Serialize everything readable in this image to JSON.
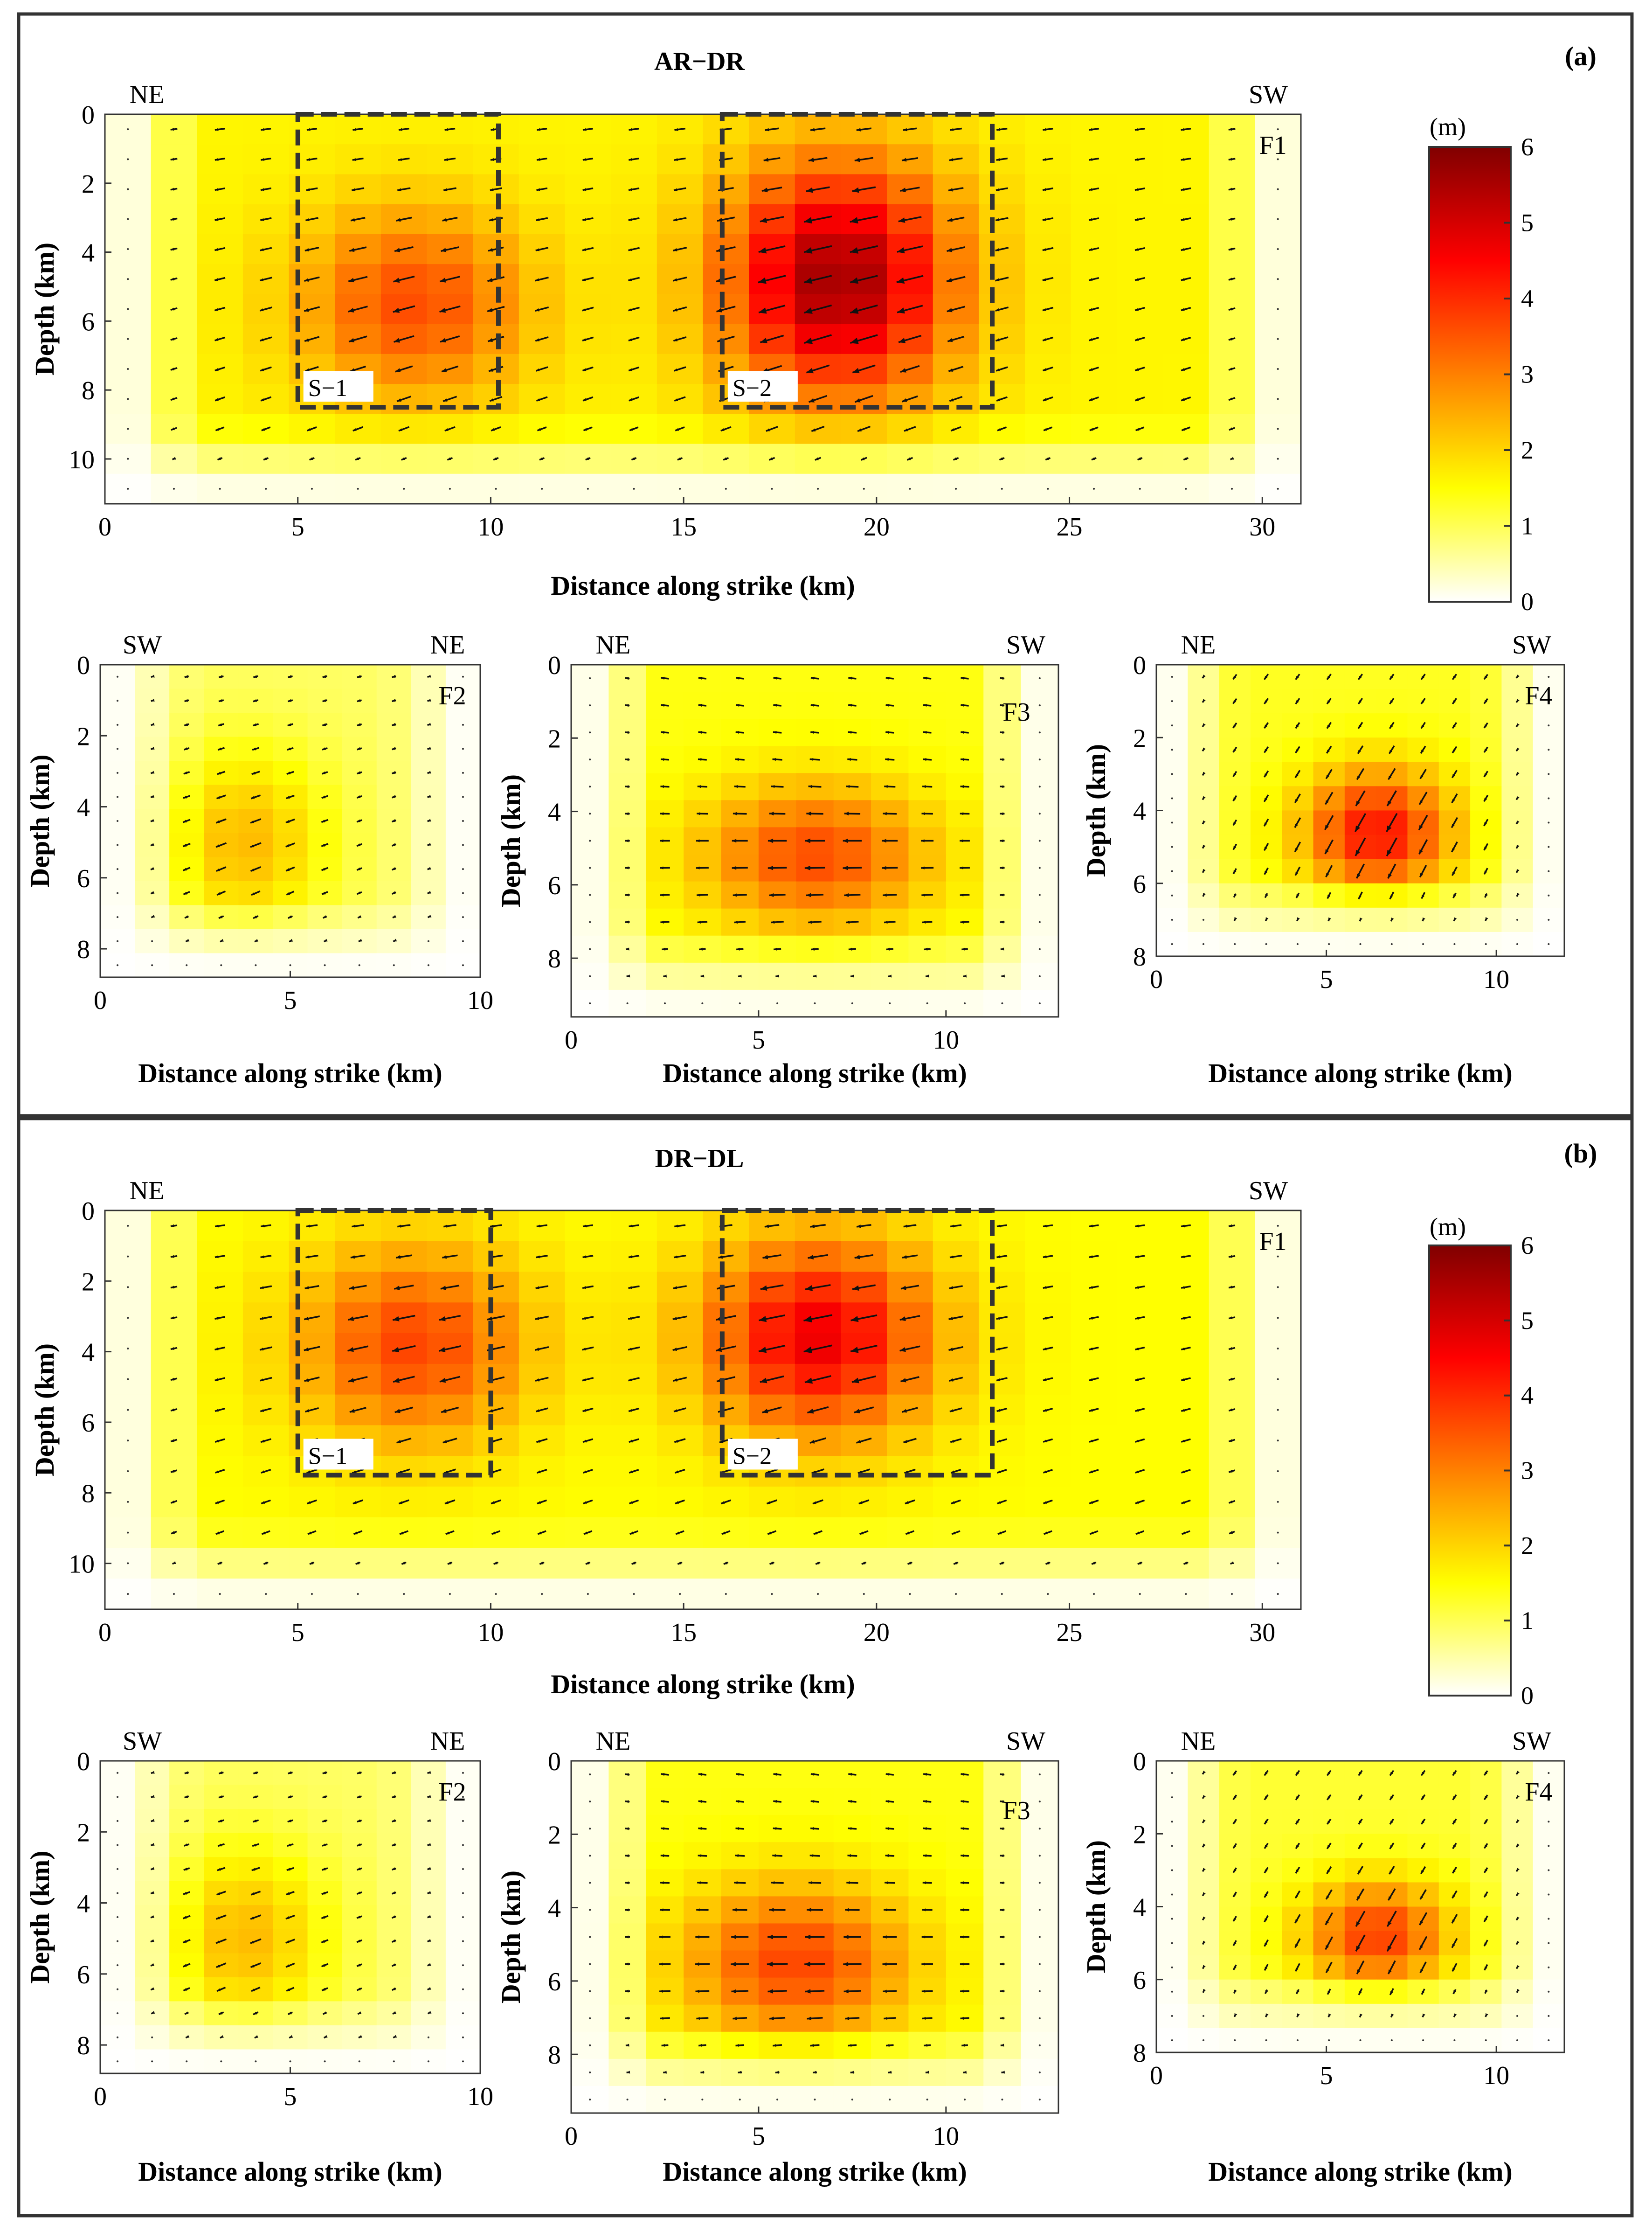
{
  "chart_data": [
    {
      "panel": "(a)",
      "title": "AR−DR",
      "type": "heatmap",
      "colorbar": {
        "unit": "(m)",
        "range": [
          0,
          6
        ],
        "ticks": [
          "0",
          "1",
          "2",
          "3",
          "4",
          "5",
          "6"
        ],
        "colors": [
          "#ffffff",
          "#ffff00",
          "#ff8000",
          "#ff0000",
          "#800000"
        ]
      },
      "faults": [
        {
          "name": "F1",
          "left": "NE",
          "right": "SW",
          "xlabel": "Distance along strike (km)",
          "ylabel": "Depth (km)",
          "xlim": [
            0,
            31
          ],
          "ylim": [
            0,
            11.3
          ],
          "xticks": [
            "0",
            "5",
            "10",
            "15",
            "20",
            "25",
            "30"
          ],
          "yticks": [
            "0",
            "2",
            "4",
            "6",
            "8",
            "10"
          ],
          "slip_patches": [
            {
              "x0": 5,
              "x1": 12,
              "y0": 1,
              "y1": 7.5,
              "peak": 3.6,
              "cx": 8,
              "cy": 5.5
            },
            {
              "x0": 16,
              "x1": 23,
              "y0": 0,
              "y1": 8,
              "peak": 5.6,
              "cx": 19,
              "cy": 4.8
            }
          ],
          "background_slip": 1.6,
          "grid_step": 1.2,
          "mean_rake": 195,
          "boxes": [
            {
              "label": "S−1",
              "x0": 5,
              "x1": 10.2,
              "y0": 0,
              "y1": 8.5
            },
            {
              "label": "S−2",
              "x0": 16,
              "x1": 23,
              "y0": 0,
              "y1": 8.5
            }
          ]
        },
        {
          "name": "F2",
          "left": "SW",
          "right": "NE",
          "xlabel": "Distance along strike (km)",
          "ylabel": "Depth (km)",
          "xlim": [
            0,
            10
          ],
          "ylim": [
            0,
            8.8
          ],
          "xticks": [
            "0",
            "5",
            "10"
          ],
          "yticks": [
            "0",
            "2",
            "4",
            "6",
            "8"
          ],
          "slip_patches": [
            {
              "x0": 1,
              "x1": 6,
              "y0": 2,
              "y1": 8,
              "peak": 2.3,
              "cx": 3.8,
              "cy": 5
            }
          ],
          "background_slip": 0.9,
          "grid_step": 0.9,
          "mean_rake": 200
        },
        {
          "name": "F3",
          "left": "NE",
          "right": "SW",
          "xlabel": "Distance along strike (km)",
          "ylabel": "Depth (km)",
          "xlim": [
            0,
            13
          ],
          "ylim": [
            0,
            9.6
          ],
          "xticks": [
            "0",
            "5",
            "10"
          ],
          "yticks": [
            "0",
            "2",
            "4",
            "6",
            "8"
          ],
          "slip_patches": [
            {
              "x0": 3,
              "x1": 10,
              "y0": 3,
              "y1": 7.5,
              "peak": 3.6,
              "cx": 6.5,
              "cy": 5.2
            }
          ],
          "background_slip": 1.4,
          "grid_step": 1.0,
          "mean_rake": 180
        },
        {
          "name": "F4",
          "left": "NE",
          "right": "SW",
          "xlabel": "Distance along strike (km)",
          "ylabel": "Depth (km)",
          "xlim": [
            0,
            12
          ],
          "ylim": [
            0,
            8
          ],
          "xticks": [
            "0",
            "5",
            "10"
          ],
          "yticks": [
            "0",
            "2",
            "4",
            "6",
            "8"
          ],
          "slip_patches": [
            {
              "x0": 4,
              "x1": 9,
              "y0": 2.5,
              "y1": 6.5,
              "peak": 4.3,
              "cx": 6.5,
              "cy": 4.6
            }
          ],
          "background_slip": 1.3,
          "grid_step": 0.9,
          "mean_rake": 240
        }
      ]
    },
    {
      "panel": "(b)",
      "title": "DR−DL",
      "type": "heatmap",
      "colorbar": {
        "unit": "(m)",
        "range": [
          0,
          6
        ],
        "ticks": [
          "0",
          "1",
          "2",
          "3",
          "4",
          "5",
          "6"
        ],
        "colors": [
          "#ffffff",
          "#ffff00",
          "#ff8000",
          "#ff0000",
          "#800000"
        ]
      },
      "faults": [
        {
          "name": "F1",
          "left": "NE",
          "right": "SW",
          "xlabel": "Distance along strike (km)",
          "ylabel": "Depth (km)",
          "xlim": [
            0,
            31
          ],
          "ylim": [
            0,
            11.3
          ],
          "xticks": [
            "0",
            "5",
            "10",
            "15",
            "20",
            "25",
            "30"
          ],
          "yticks": [
            "0",
            "2",
            "4",
            "6",
            "8",
            "10"
          ],
          "slip_patches": [
            {
              "x0": 5,
              "x1": 12,
              "y0": 1,
              "y1": 7.5,
              "peak": 3.7,
              "cx": 8,
              "cy": 3.8
            },
            {
              "x0": 16,
              "x1": 23,
              "y0": 1,
              "y1": 7.5,
              "peak": 4.7,
              "cx": 18.5,
              "cy": 3.6
            }
          ],
          "background_slip": 1.5,
          "grid_step": 1.2,
          "mean_rake": 195,
          "boxes": [
            {
              "label": "S−1",
              "x0": 5,
              "x1": 10,
              "y0": 0,
              "y1": 7.5
            },
            {
              "label": "S−2",
              "x0": 16,
              "x1": 23,
              "y0": 0,
              "y1": 7.5
            }
          ]
        },
        {
          "name": "F2",
          "left": "SW",
          "right": "NE",
          "xlabel": "Distance along strike (km)",
          "ylabel": "Depth (km)",
          "xlim": [
            0,
            10
          ],
          "ylim": [
            0,
            8.8
          ],
          "xticks": [
            "0",
            "5",
            "10"
          ],
          "yticks": [
            "0",
            "2",
            "4",
            "6",
            "8"
          ],
          "slip_patches": [
            {
              "x0": 1,
              "x1": 6,
              "y0": 2,
              "y1": 8,
              "peak": 2.3,
              "cx": 3.8,
              "cy": 5
            }
          ],
          "background_slip": 0.9,
          "grid_step": 0.9,
          "mean_rake": 200
        },
        {
          "name": "F3",
          "left": "NE",
          "right": "SW",
          "xlabel": "Distance along strike (km)",
          "ylabel": "Depth (km)",
          "xlim": [
            0,
            13
          ],
          "ylim": [
            0,
            9.6
          ],
          "xticks": [
            "0",
            "5",
            "10"
          ],
          "yticks": [
            "0",
            "2",
            "4",
            "6",
            "8"
          ],
          "slip_patches": [
            {
              "x0": 3,
              "x1": 10,
              "y0": 3,
              "y1": 8,
              "peak": 3.7,
              "cx": 6,
              "cy": 5.5
            }
          ],
          "background_slip": 1.4,
          "grid_step": 1.0,
          "mean_rake": 180
        },
        {
          "name": "F4",
          "left": "NE",
          "right": "SW",
          "xlabel": "Distance along strike (km)",
          "ylabel": "Depth (km)",
          "xlim": [
            0,
            12
          ],
          "ylim": [
            0,
            8
          ],
          "xticks": [
            "0",
            "5",
            "10"
          ],
          "yticks": [
            "0",
            "2",
            "4",
            "6",
            "8"
          ],
          "slip_patches": [
            {
              "x0": 4,
              "x1": 9,
              "y0": 3,
              "y1": 6.5,
              "peak": 3.8,
              "cx": 6.5,
              "cy": 4.8
            }
          ],
          "background_slip": 1.2,
          "grid_step": 0.9,
          "mean_rake": 240
        }
      ]
    }
  ]
}
